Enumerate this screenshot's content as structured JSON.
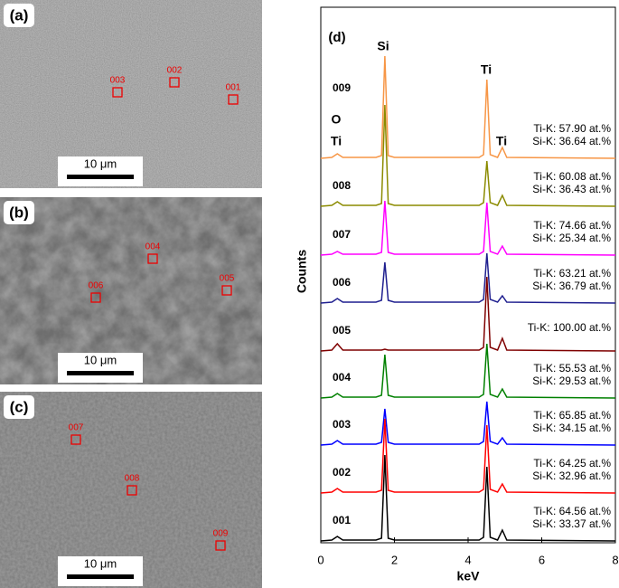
{
  "panels": [
    {
      "label": "(a)",
      "scale_bar": "10 μm",
      "sites": [
        "003",
        "002",
        "001"
      ]
    },
    {
      "label": "(b)",
      "scale_bar": "10 μm",
      "sites": [
        "004",
        "006",
        "005"
      ]
    },
    {
      "label": "(c)",
      "scale_bar": "10 μm",
      "sites": [
        "007",
        "008",
        "009"
      ]
    }
  ],
  "chart_data": {
    "type": "line",
    "title": "(d)",
    "xlabel": "keV",
    "ylabel": "Counts",
    "xlim": [
      0,
      8
    ],
    "xticks": [
      0,
      2,
      4,
      6,
      8
    ],
    "peak_labels": [
      "Si",
      "Ti",
      "Ti",
      "O",
      "Ti"
    ],
    "x": [
      0,
      0.3,
      0.45,
      0.6,
      1.5,
      1.65,
      1.74,
      1.83,
      2.0,
      4.3,
      4.42,
      4.51,
      4.6,
      4.8,
      4.93,
      5.05,
      8
    ],
    "series": [
      {
        "name": "009",
        "color": "#f79646",
        "composition": [
          "Ti-K: 57.90 at.%",
          "Si-K: 36.64 at.%"
        ],
        "values": [
          0,
          1,
          5,
          1,
          1,
          3,
          113,
          3,
          1,
          1,
          4,
          87,
          4,
          1,
          12,
          1,
          0
        ]
      },
      {
        "name": "008",
        "color": "#8b8b00",
        "composition": [
          "Ti-K: 60.08 at.%",
          "Si-K: 36.43 at.%"
        ],
        "values": [
          0,
          1,
          5,
          1,
          1,
          3,
          112,
          3,
          1,
          1,
          4,
          50,
          4,
          1,
          12,
          1,
          0
        ]
      },
      {
        "name": "007",
        "color": "#ff00ff",
        "composition": [
          "Ti-K: 74.66 at.%",
          "Si-K: 25.34 at.%"
        ],
        "values": [
          0,
          1,
          4,
          1,
          1,
          3,
          60,
          3,
          1,
          1,
          4,
          58,
          4,
          1,
          10,
          1,
          0
        ]
      },
      {
        "name": "006",
        "color": "#1f1f8f",
        "composition": [
          "Ti-K: 63.21 at.%",
          "Si-K: 36.79 at.%"
        ],
        "values": [
          0,
          1,
          5,
          1,
          1,
          3,
          45,
          3,
          1,
          1,
          4,
          55,
          4,
          1,
          8,
          1,
          0
        ]
      },
      {
        "name": "005",
        "color": "#7f0000",
        "composition": [
          "Ti-K: 100.00 at.%"
        ],
        "values": [
          0,
          1,
          8,
          1,
          1,
          1,
          2,
          1,
          1,
          1,
          4,
          82,
          4,
          1,
          14,
          1,
          0
        ]
      },
      {
        "name": "004",
        "color": "#008000",
        "composition": [
          "Ti-K: 55.53 at.%",
          "Si-K: 29.53 at.%"
        ],
        "values": [
          0,
          1,
          5,
          1,
          1,
          3,
          48,
          3,
          1,
          1,
          4,
          60,
          4,
          1,
          10,
          1,
          0
        ]
      },
      {
        "name": "003",
        "color": "#0000ff",
        "composition": [
          "Ti-K: 65.85 at.%",
          "Si-K: 34.15 at.%"
        ],
        "values": [
          0,
          1,
          5,
          1,
          1,
          3,
          40,
          3,
          1,
          1,
          4,
          48,
          4,
          1,
          8,
          1,
          0
        ]
      },
      {
        "name": "002",
        "color": "#ff0000",
        "composition": [
          "Ti-K: 64.25 at.%",
          "Si-K: 32.96 at.%"
        ],
        "values": [
          0,
          1,
          5,
          1,
          1,
          3,
          82,
          3,
          1,
          1,
          4,
          75,
          4,
          1,
          10,
          1,
          0
        ]
      },
      {
        "name": "001",
        "color": "#000000",
        "composition": [
          "Ti-K: 64.56 at.%",
          "Si-K: 33.37 at.%"
        ],
        "values": [
          0,
          1,
          5,
          1,
          1,
          3,
          95,
          3,
          1,
          1,
          4,
          82,
          4,
          1,
          12,
          1,
          0
        ]
      }
    ]
  }
}
